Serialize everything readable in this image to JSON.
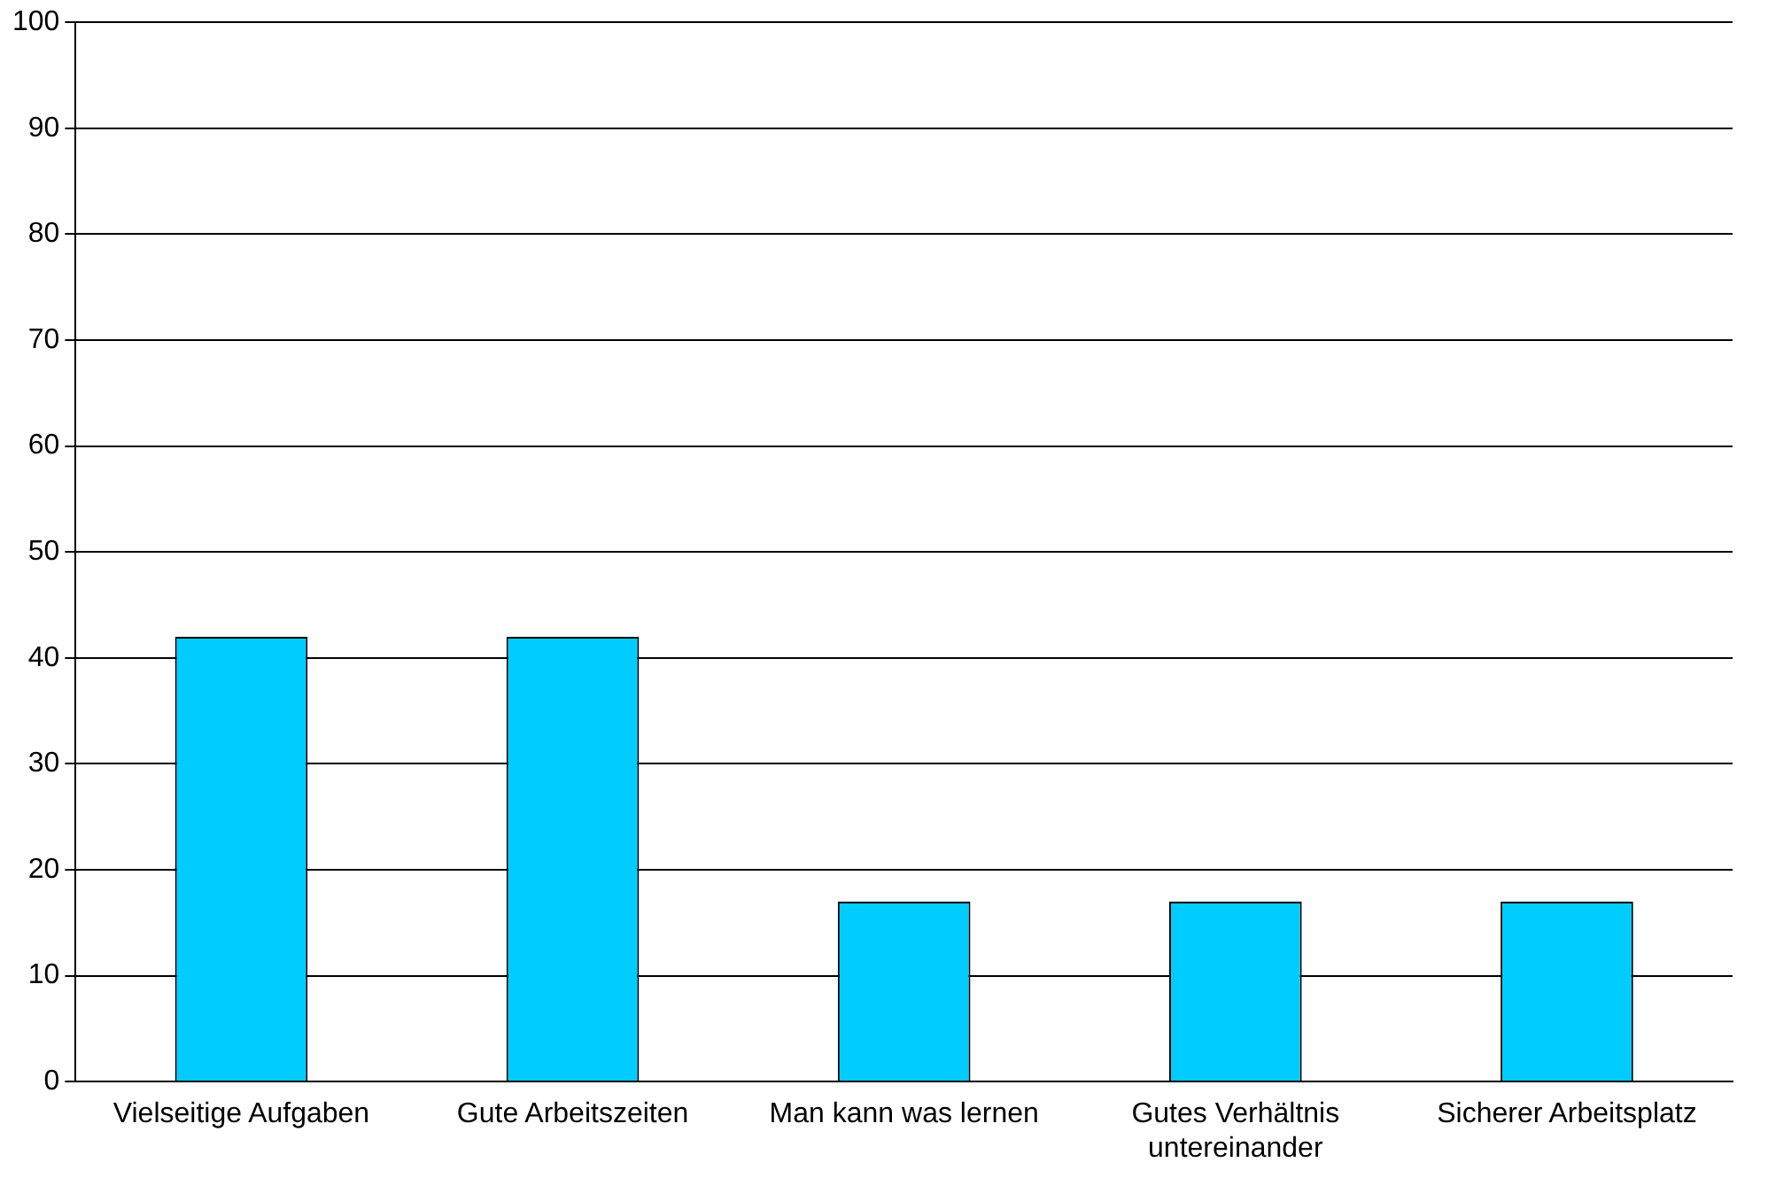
{
  "chart_data": {
    "type": "bar",
    "categories": [
      "Vielseitige Aufgaben",
      "Gute Arbeitszeiten",
      "Man kann was lernen",
      "Gutes Verhältnis untereinander",
      "Sicherer Arbeitsplatz"
    ],
    "values": [
      42,
      42,
      17,
      17,
      17
    ],
    "color": "#00ccff",
    "ylim": [
      0,
      100
    ],
    "yticks": [
      0,
      10,
      20,
      30,
      40,
      50,
      60,
      70,
      80,
      90,
      100
    ],
    "grid": "y",
    "legend": false
  }
}
